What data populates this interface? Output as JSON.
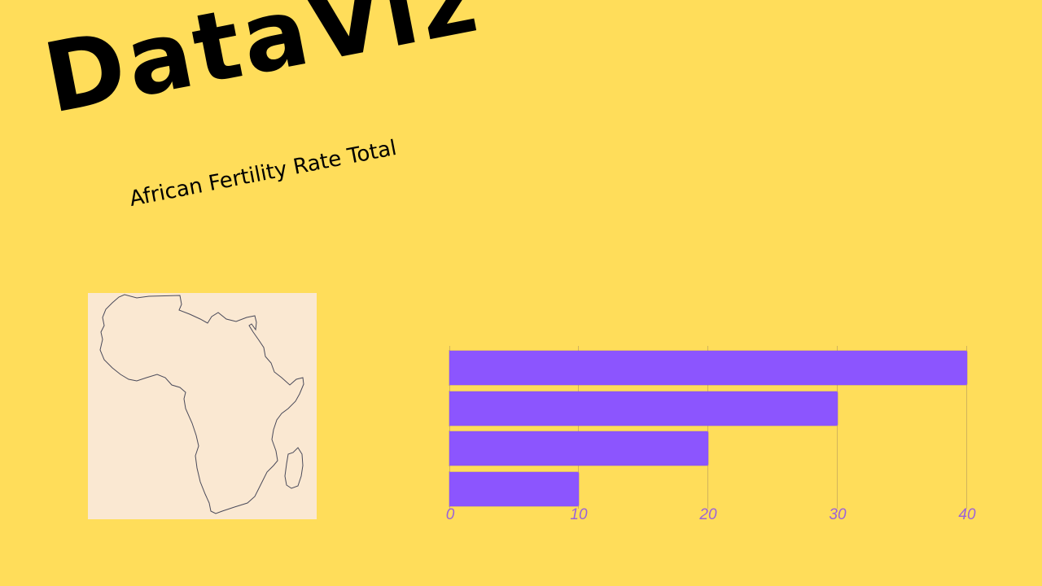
{
  "header": {
    "title": "DataViz",
    "subtitle": "African Fertility Rate Total"
  },
  "map": {
    "icon": "africa-map-outline",
    "background": "#fae8d2",
    "stroke": "#4a4a5a"
  },
  "colors": {
    "background": "#ffdd5a",
    "bar": "#8c55fe",
    "tick_label": "#9b63d8",
    "gridline": "#d3b45a"
  },
  "chart_data": {
    "type": "bar",
    "orientation": "horizontal",
    "categories": [
      "",
      "",
      "",
      ""
    ],
    "values": [
      40,
      30,
      20,
      10
    ],
    "title": "",
    "xlabel": "",
    "ylabel": "",
    "xlim": [
      0,
      40
    ],
    "x_ticks": [
      "0",
      "10",
      "20",
      "30",
      "40"
    ],
    "grid": true,
    "legend": null
  }
}
